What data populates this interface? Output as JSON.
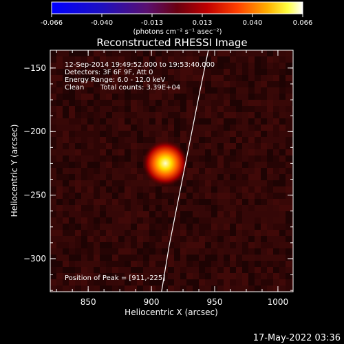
{
  "colorbar": {
    "ticks": [
      "-0.066",
      "-0.040",
      "-0.013",
      "0.013",
      "0.040",
      "0.066"
    ],
    "units": "(photons cm⁻² s⁻¹ asec⁻²)"
  },
  "chart_data": {
    "type": "heatmap",
    "title": "Reconstructed RHESSI Image",
    "xlabel": "Heliocentric X (arcsec)",
    "ylabel": "Heliocentric Y (arcsec)",
    "xlim": [
      820,
      1012
    ],
    "ylim": [
      -326,
      -136
    ],
    "xticks": [
      850,
      900,
      950,
      1000
    ],
    "yticks": [
      -150,
      -200,
      -250,
      -300
    ],
    "clim": [
      -0.066,
      0.066
    ],
    "colormap": "blue-purple-red-yellow-white",
    "source_peak": {
      "x": 911,
      "y": -225,
      "value": 0.066
    },
    "limb_curve": [
      [
        945,
        -136
      ],
      [
        938,
        -170
      ],
      [
        930,
        -210
      ],
      [
        922,
        -250
      ],
      [
        914,
        -290
      ],
      [
        908,
        -326
      ]
    ],
    "annotations": {
      "time_range": "12-Sep-2014 19:49:52.000 to 19:53:40.000",
      "detectors": "Detectors: 3F 6F 9F, Att 0",
      "energy": "Energy Range: 6.0 - 12.0 keV",
      "clean": "Clean",
      "total_counts": "Total counts: 3.39E+04",
      "peak_position": "Position of Peak = [911,-225]"
    }
  },
  "footer": {
    "timestamp": "17-May-2022 03:36"
  }
}
